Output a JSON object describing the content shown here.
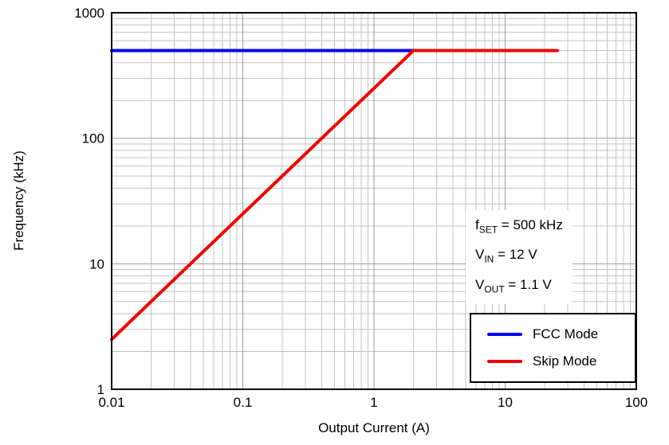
{
  "chart_data": {
    "type": "line",
    "title": "",
    "xlabel": "Output Current (A)",
    "ylabel": "Frequency (kHz)",
    "x_scale": "log",
    "y_scale": "log",
    "xlim": [
      0.01,
      100
    ],
    "ylim": [
      1,
      1000
    ],
    "grid": "major and minor log gridlines",
    "grid_major_color": "#9b9b9b",
    "grid_minor_color": "#c2c2c2",
    "frame_color": "#000000",
    "x_ticks": {
      "values": [
        0.01,
        0.1,
        1,
        10,
        100
      ],
      "labels": [
        "0.01",
        "0.1",
        "1",
        "10",
        "100"
      ]
    },
    "y_ticks": {
      "values": [
        1,
        10,
        100,
        1000
      ],
      "labels": [
        "1",
        "10",
        "100",
        "1000"
      ]
    },
    "series": [
      {
        "name": "FCC Mode",
        "color": "#0000ee",
        "line_width": 4,
        "points": [
          [
            0.01,
            500
          ],
          [
            2.3,
            500
          ]
        ]
      },
      {
        "name": "Skip Mode",
        "color": "#f20000",
        "line_width": 4,
        "points": [
          [
            0.01,
            2.5
          ],
          [
            2,
            500
          ],
          [
            25,
            500
          ]
        ]
      }
    ],
    "legend": {
      "position": "lower right",
      "entries": [
        "FCC Mode",
        "Skip Mode"
      ]
    },
    "annotations": [
      {
        "pre": "f",
        "sub": "SET",
        "post": " = 500 kHz"
      },
      {
        "pre": "V",
        "sub": "IN",
        "post": " = 12 V"
      },
      {
        "pre": "V",
        "sub": "OUT",
        "post": " = 1.1 V"
      }
    ]
  }
}
